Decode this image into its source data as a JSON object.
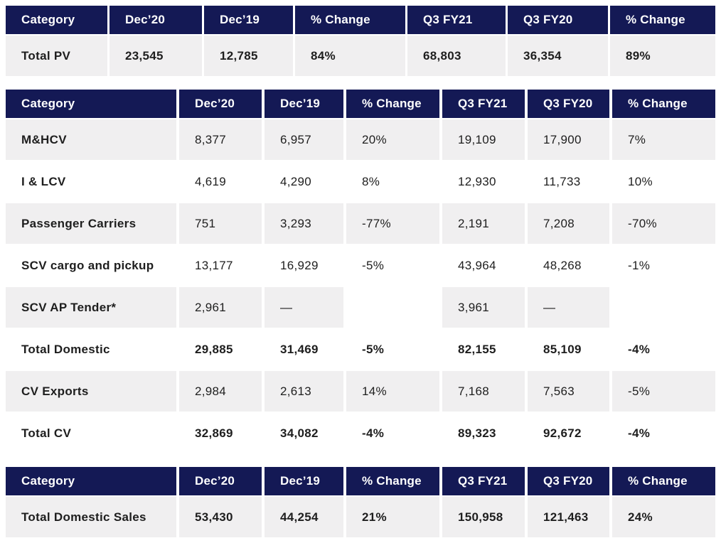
{
  "theme": {
    "header_bg": "#141955",
    "header_text": "#ffffff",
    "shaded_row_bg": "#f0eff0",
    "plain_row_bg": "#ffffff",
    "body_text": "#1e1e1e"
  },
  "chart_data": [
    {
      "type": "table",
      "name": "total-pv",
      "columns": [
        "Category",
        "Dec’20",
        "Dec’19",
        "% Change",
        "Q3 FY21",
        "Q3 FY20",
        "% Change"
      ],
      "rows": [
        {
          "label": "Total PV",
          "values": [
            "23,545",
            "12,785",
            "84%",
            "68,803",
            "36,354",
            "89%"
          ],
          "total": true,
          "shaded": true
        }
      ]
    },
    {
      "type": "table",
      "name": "cv-breakdown",
      "columns": [
        "Category",
        "Dec’20",
        "Dec’19",
        "% Change",
        "Q3 FY21",
        "Q3 FY20",
        "% Change"
      ],
      "rows": [
        {
          "label": "M&HCV",
          "values": [
            "8,377",
            "6,957",
            "20%",
            "19,109",
            "17,900",
            "7%"
          ],
          "total": false,
          "shaded": true
        },
        {
          "label": "I & LCV",
          "values": [
            "4,619",
            "4,290",
            "8%",
            "12,930",
            "11,733",
            "10%"
          ],
          "total": false,
          "shaded": false
        },
        {
          "label": "Passenger Carriers",
          "values": [
            "751",
            "3,293",
            "-77%",
            "2,191",
            "7,208",
            "-70%"
          ],
          "total": false,
          "shaded": true
        },
        {
          "label": "SCV cargo and pickup",
          "values": [
            "13,177",
            "16,929",
            "-5%",
            "43,964",
            "48,268",
            "-1%"
          ],
          "total": false,
          "shaded": false
        },
        {
          "label": "SCV AP Tender*",
          "values": [
            "2,961",
            "—",
            "",
            "3,961",
            "—",
            ""
          ],
          "total": false,
          "shaded": true
        },
        {
          "label": "Total Domestic",
          "values": [
            "29,885",
            "31,469",
            "-5%",
            "82,155",
            "85,109",
            "-4%"
          ],
          "total": true,
          "shaded": false
        },
        {
          "label": "CV Exports",
          "values": [
            "2,984",
            "2,613",
            "14%",
            "7,168",
            "7,563",
            "-5%"
          ],
          "total": false,
          "shaded": true
        },
        {
          "label": "Total CV",
          "values": [
            "32,869",
            "34,082",
            "-4%",
            "89,323",
            "92,672",
            "-4%"
          ],
          "total": true,
          "shaded": false
        }
      ]
    },
    {
      "type": "table",
      "name": "total-domestic-sales",
      "columns": [
        "Category",
        "Dec’20",
        "Dec’19",
        "% Change",
        "Q3 FY21",
        "Q3 FY20",
        "% Change"
      ],
      "rows": [
        {
          "label": "Total Domestic Sales",
          "values": [
            "53,430",
            "44,254",
            "21%",
            "150,958",
            "121,463",
            "24%"
          ],
          "total": true,
          "shaded": true
        }
      ]
    }
  ]
}
